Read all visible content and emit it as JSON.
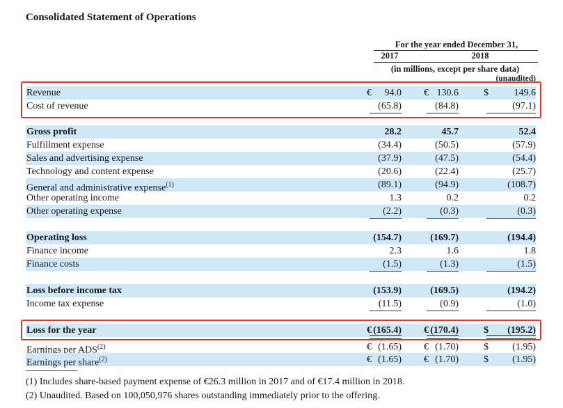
{
  "title": "Consolidated Statement of Operations",
  "header": {
    "period": "For the year ended December 31,",
    "year1": "2017",
    "year2": "2018",
    "units": "(in millions, except per share data)",
    "unaudited": "(unaudited)"
  },
  "rows": [
    {
      "label": "Revenue",
      "c1": "€",
      "v1": "94.0",
      "c2": "€",
      "v2": "130.6",
      "c3": "$",
      "v3": "149.6"
    },
    {
      "label": "Cost of revenue",
      "v1": "(65.8)",
      "v2": "(84.8)",
      "v3": "(97.1)"
    },
    {
      "label": "Gross profit",
      "v1": "28.2",
      "v2": "45.7",
      "v3": "52.4"
    },
    {
      "label": "Fulfillment expense",
      "v1": "(34.4)",
      "v2": "(50.5)",
      "v3": "(57.9)"
    },
    {
      "label": "Sales and advertising expense",
      "v1": "(37.9)",
      "v2": "(47.5)",
      "v3": "(54.4)"
    },
    {
      "label": "Technology and content expense",
      "v1": "(20.6)",
      "v2": "(22.4)",
      "v3": "(25.7)"
    },
    {
      "label": "General and administrative expense",
      "sup": "(1)",
      "v1": "(89.1)",
      "v2": "(94.9)",
      "v3": "(108.7)"
    },
    {
      "label": "Other operating income",
      "v1": "1.3",
      "v2": "0.2",
      "v3": "0.2"
    },
    {
      "label": "Other operating expense",
      "v1": "(2.2)",
      "v2": "(0.3)",
      "v3": "(0.3)"
    },
    {
      "label": "Operating loss",
      "v1": "(154.7)",
      "v2": "(169.7)",
      "v3": "(194.4)"
    },
    {
      "label": "Finance income",
      "v1": "2.3",
      "v2": "1.6",
      "v3": "1.8"
    },
    {
      "label": "Finance costs",
      "v1": "(1.5)",
      "v2": "(1.3)",
      "v3": "(1.5)"
    },
    {
      "label": "Loss before income tax",
      "v1": "(153.9)",
      "v2": "(169.5)",
      "v3": "(194.2)"
    },
    {
      "label": "Income tax expense",
      "v1": "(11.5)",
      "v2": "(0.9)",
      "v3": "(1.0)"
    },
    {
      "label": "Loss for the year",
      "c1": "€",
      "v1": "(165.4)",
      "c2": "€",
      "v2": "(170.4)",
      "c3": "$",
      "v3": "(195.2)"
    },
    {
      "label": "Earnings per ADS",
      "sup": "(2)",
      "c1": "€",
      "v1": "(1.65)",
      "c2": "€",
      "v2": "(1.70)",
      "c3": "$",
      "v3": "(1.95)"
    },
    {
      "label": "Earnings per share",
      "sup": "(2)",
      "c1": "€",
      "v1": "(1.65)",
      "c2": "€",
      "v2": "(1.70)",
      "c3": "$",
      "v3": "(1.95)"
    }
  ],
  "footnotes": [
    "(1)  Includes share-based payment expense of €26.3 million in 2017 and of €17.4 million in 2018.",
    "(2)  Unaudited. Based on 100,050,976 shares outstanding immediately prior to the offering."
  ],
  "colors": {
    "highlight_box": "#d63a32",
    "row_shade": "#cfe7f6"
  }
}
